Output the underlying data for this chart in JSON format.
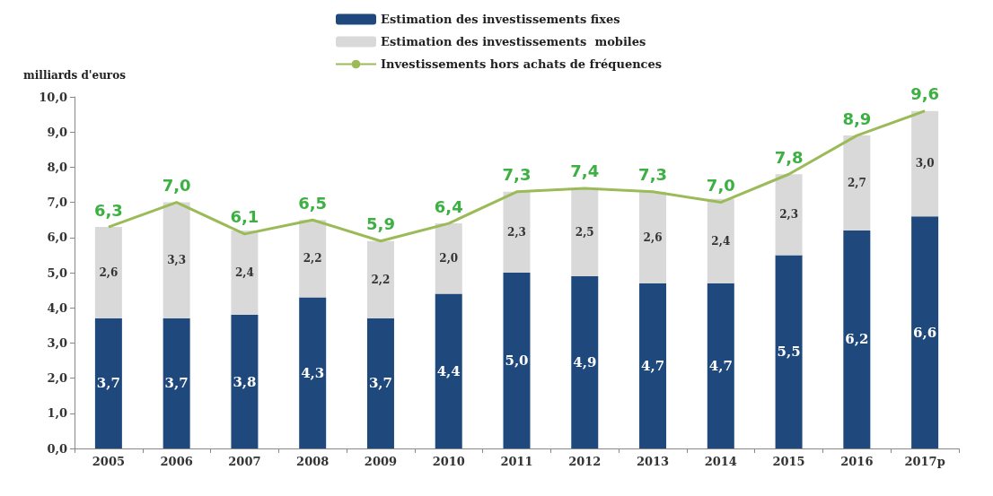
{
  "chart_data": {
    "type": "bar",
    "ylabel": "milliards d'euros",
    "stacked": true,
    "grid": false,
    "legend": "top",
    "marker": "none",
    "categories": [
      "2005",
      "2006",
      "2007",
      "2008",
      "2009",
      "2010",
      "2011",
      "2012",
      "2013",
      "2014",
      "2015",
      "2016",
      "2017p"
    ],
    "ylim": [
      0,
      10
    ],
    "yticks": [
      {
        "value": 0,
        "label": "0,0"
      },
      {
        "value": 1,
        "label": "1,0"
      },
      {
        "value": 2,
        "label": "2,0"
      },
      {
        "value": 3,
        "label": "3,0"
      },
      {
        "value": 4,
        "label": "4,0"
      },
      {
        "value": 5,
        "label": "5,0"
      },
      {
        "value": 6,
        "label": "6,0"
      },
      {
        "value": 7,
        "label": "7,0"
      },
      {
        "value": 8,
        "label": "8,0"
      },
      {
        "value": 9,
        "label": "9,0"
      },
      {
        "value": 10,
        "label": "10,0"
      }
    ],
    "series": [
      {
        "name": "Estimation des investissements fixes",
        "color": "#1f497d",
        "values": [
          3.7,
          3.7,
          3.8,
          4.3,
          3.7,
          4.4,
          5.0,
          4.9,
          4.7,
          4.7,
          5.5,
          6.2,
          6.6
        ],
        "value_labels": [
          "3,7",
          "3,7",
          "3,8",
          "4,3",
          "3,7",
          "4,4",
          "5,0",
          "4,9",
          "4,7",
          "4,7",
          "5,5",
          "6,2",
          "6,6"
        ]
      },
      {
        "name": "Estimation des investissements  mobiles",
        "color": "#d9d9d9",
        "values": [
          2.6,
          3.3,
          2.4,
          2.2,
          2.2,
          2.0,
          2.3,
          2.5,
          2.6,
          2.4,
          2.3,
          2.7,
          3.0
        ],
        "value_labels": [
          "2,6",
          "3,3",
          "2,4",
          "2,2",
          "2,2",
          "2,0",
          "2,3",
          "2,5",
          "2,6",
          "2,4",
          "2,3",
          "2,7",
          "3,0"
        ]
      },
      {
        "name": "Investissements hors achats de fréquences",
        "type": "line",
        "color": "#9bbb59",
        "line_style": "solid",
        "values": [
          6.3,
          7.0,
          6.1,
          6.5,
          5.9,
          6.4,
          7.3,
          7.4,
          7.3,
          7.0,
          7.8,
          8.9,
          9.6
        ],
        "value_labels": [
          "6,3",
          "7,0",
          "6,1",
          "6,5",
          "5,9",
          "6,4",
          "7,3",
          "7,4",
          "7,3",
          "7,0",
          "7,8",
          "8,9",
          "9,6"
        ]
      }
    ]
  }
}
